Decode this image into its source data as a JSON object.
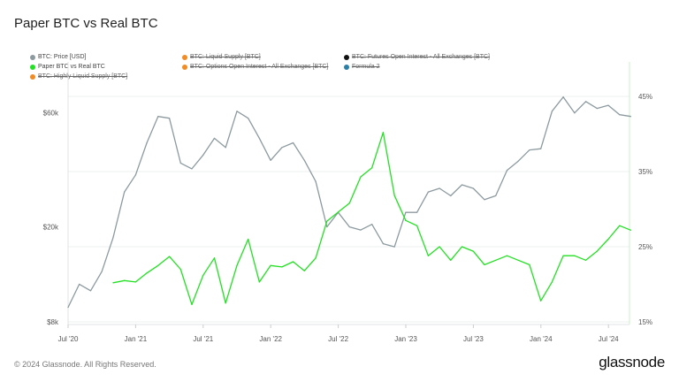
{
  "title": "Paper BTC vs Real BTC",
  "legend": [
    {
      "label": "BTC: Price [USD]",
      "color": "#8c9aa0",
      "active": true
    },
    {
      "label": "BTC: Liquid Supply [BTC]",
      "color": "#f08c24",
      "active": false
    },
    {
      "label": "BTC: Futures Open Interest - All Exchanges [BTC]",
      "color": "#111111",
      "active": false
    },
    {
      "label": "Paper BTC vs Real BTC",
      "color": "#22e022",
      "active": true
    },
    {
      "label": "BTC: Options Open Interest - All Exchanges [BTC]",
      "color": "#f08c24",
      "active": false
    },
    {
      "label": "Formula 2",
      "color": "#2a7fa8",
      "active": false
    },
    {
      "label": "BTC: Highly Liquid Supply [BTC]",
      "color": "#f08c24",
      "active": false
    }
  ],
  "footer": "© 2024 Glassnode. All Rights Reserved.",
  "brand": "glassnode",
  "chart_data": {
    "type": "line",
    "x_ticks": [
      "Jul '20",
      "Jan '21",
      "Jul '21",
      "Jan '22",
      "Jul '22",
      "Jan '23",
      "Jul '23",
      "Jan '24",
      "Jul '24"
    ],
    "left_axis": {
      "scale": "log",
      "ticks": [
        "$8k",
        "$20k",
        "$60k"
      ],
      "tick_values": [
        8000,
        20000,
        60000
      ]
    },
    "right_axis": {
      "scale": "linear",
      "ticks": [
        "15%",
        "25%",
        "35%",
        "45%"
      ],
      "tick_values": [
        15,
        25,
        35,
        45
      ]
    },
    "grid": true,
    "legend_position": "top-left",
    "series": [
      {
        "name": "BTC: Price [USD]",
        "axis": "left",
        "color": "#8c9aa0",
        "x": [
          "2020-07",
          "2020-08",
          "2020-09",
          "2020-10",
          "2020-11",
          "2020-12",
          "2021-01",
          "2021-02",
          "2021-03",
          "2021-04",
          "2021-05",
          "2021-06",
          "2021-07",
          "2021-08",
          "2021-09",
          "2021-10",
          "2021-11",
          "2021-12",
          "2022-01",
          "2022-02",
          "2022-03",
          "2022-04",
          "2022-05",
          "2022-06",
          "2022-07",
          "2022-08",
          "2022-09",
          "2022-10",
          "2022-11",
          "2022-12",
          "2023-01",
          "2023-02",
          "2023-03",
          "2023-04",
          "2023-05",
          "2023-06",
          "2023-07",
          "2023-08",
          "2023-09",
          "2023-10",
          "2023-11",
          "2023-12",
          "2024-01",
          "2024-02",
          "2024-03",
          "2024-04",
          "2024-05",
          "2024-06",
          "2024-07",
          "2024-08",
          "2024-09"
        ],
        "values": [
          9200,
          11500,
          10800,
          13000,
          18000,
          28000,
          33000,
          45000,
          58000,
          57000,
          37000,
          35000,
          40000,
          47000,
          43000,
          61000,
          57000,
          47000,
          38000,
          43000,
          45000,
          38000,
          31000,
          20000,
          23000,
          20000,
          19400,
          20500,
          17000,
          16500,
          23000,
          23000,
          28000,
          29000,
          27000,
          30000,
          29000,
          26000,
          27000,
          34500,
          37700,
          42000,
          42500,
          61000,
          70000,
          60000,
          67000,
          62700,
          64600,
          59000,
          58000
        ]
      },
      {
        "name": "Paper BTC vs Real BTC",
        "axis": "right",
        "color": "#22e022",
        "x": [
          "2020-11",
          "2020-12",
          "2021-01",
          "2021-02",
          "2021-03",
          "2021-04",
          "2021-05",
          "2021-06",
          "2021-07",
          "2021-08",
          "2021-09",
          "2021-10",
          "2021-11",
          "2021-12",
          "2022-01",
          "2022-02",
          "2022-03",
          "2022-04",
          "2022-05",
          "2022-06",
          "2022-07",
          "2022-08",
          "2022-09",
          "2022-10",
          "2022-11",
          "2022-12",
          "2023-01",
          "2023-02",
          "2023-03",
          "2023-04",
          "2023-05",
          "2023-06",
          "2023-07",
          "2023-08",
          "2023-09",
          "2023-10",
          "2023-11",
          "2023-12",
          "2024-01",
          "2024-02",
          "2024-03",
          "2024-04",
          "2024-05",
          "2024-06",
          "2024-07",
          "2024-08",
          "2024-09"
        ],
        "values": [
          20.2,
          20.5,
          20.3,
          21.5,
          22.5,
          23.7,
          22.0,
          17.3,
          21.2,
          23.5,
          17.5,
          22.5,
          26.0,
          20.3,
          22.5,
          22.3,
          23.0,
          21.8,
          23.5,
          28.4,
          29.6,
          30.8,
          34.3,
          35.5,
          40.2,
          31.8,
          28.5,
          27.8,
          23.8,
          25.0,
          23.2,
          25.0,
          24.4,
          22.6,
          23.2,
          23.8,
          23.2,
          22.6,
          17.8,
          20.3,
          23.8,
          23.8,
          23.2,
          24.4,
          26.0,
          27.8,
          27.2
        ]
      }
    ]
  }
}
